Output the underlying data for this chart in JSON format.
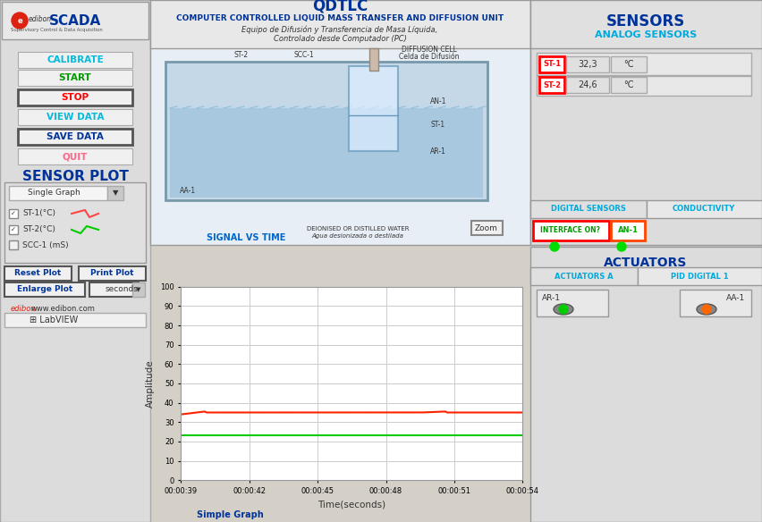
{
  "title_main": "QDTLC",
  "title_sub1": "COMPUTER CONTROLLED LIQUID MASS TRANSFER AND DIFFUSION UNIT",
  "title_sub2": "Equipo de Difusión y Transferencia de Masa Líquida,",
  "title_sub3": "Controlado desde Computador (PC)",
  "bg_color": "#d4d0c8",
  "panel_color": "#e8e8e8",
  "white": "#ffffff",
  "blue_dark": "#003399",
  "blue_light": "#00aadd",
  "red_color": "#ff0000",
  "green_color": "#00cc00",
  "buttons": [
    {
      "label": "CALIBRATE",
      "color": "#00bbdd",
      "border": false
    },
    {
      "label": "START",
      "color": "#009900",
      "border": false
    },
    {
      "label": "STOP",
      "color": "#ff0000",
      "border": true
    },
    {
      "label": "VIEW DATA",
      "color": "#00bbdd",
      "border": false
    },
    {
      "label": "SAVE DATA",
      "color": "#003399",
      "border": true
    },
    {
      "label": "QUIT",
      "color": "#ff6688",
      "border": false
    }
  ],
  "sensor_title": "SENSORS",
  "analog_title": "ANALOG SENSORS",
  "st1_val": "32,3",
  "st2_val": "24,6",
  "digital_title": "DIGITAL SENSORS",
  "conductivity_title": "CONDUCTIVITY",
  "interface_label": "INTERFACE ON?",
  "an1_label": "AN-1",
  "actuators_title": "ACTUATORS",
  "actuators_a_title": "ACTUATORS A",
  "pid_title": "PID DIGITAL 1",
  "ar1_label": "AR-1",
  "aa1_label": "AA-1",
  "sensor_plot_title": "SENSOR PLOT",
  "plot_ylabel": "Amplitude",
  "plot_xlabel": "Time(seconds)",
  "simple_graph_label": "Simple Graph",
  "signal_vs_time": "SIGNAL VS TIME",
  "zoom_label": "Zoom",
  "deionised_label": "DEIONISED OR DISTILLED WATER",
  "deionised_sub": "Agua desionizada o destilada",
  "diffusion_cell": "DIFFUSION CELL",
  "celda_difusion": "Celda de Difusión",
  "red_line_y": 35.0,
  "green_line_y": 23.0,
  "time_labels": [
    "00:00:39",
    "00:00:42",
    "00:00:45",
    "00:00:48",
    "00:00:51",
    "00:00:54"
  ],
  "y_ticks": [
    0,
    10,
    20,
    30,
    40,
    50,
    60,
    70,
    80,
    90,
    100
  ],
  "plot_bg": "#ffffff",
  "grid_color": "#cccccc"
}
